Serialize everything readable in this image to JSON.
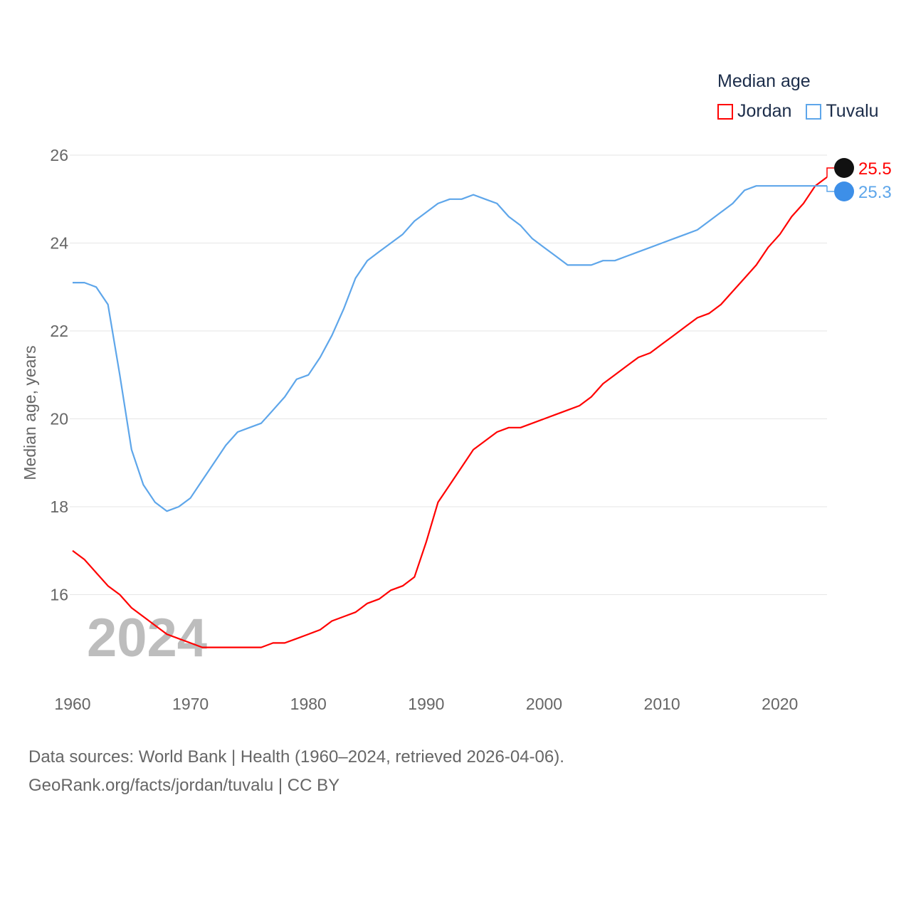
{
  "chart_data": {
    "type": "line",
    "title": "Median age",
    "ylabel": "Median age, years",
    "xlabel": "",
    "xlim": [
      1960,
      2024
    ],
    "ylim": [
      14.2,
      26.5
    ],
    "xticks": [
      1960,
      1970,
      1980,
      1990,
      2000,
      2010,
      2020
    ],
    "yticks": [
      16,
      18,
      20,
      22,
      24,
      26
    ],
    "grid": true,
    "legend_position": "top-right",
    "watermark_year": "2024",
    "x": [
      1960,
      1961,
      1962,
      1963,
      1964,
      1965,
      1966,
      1967,
      1968,
      1969,
      1970,
      1971,
      1972,
      1973,
      1974,
      1975,
      1976,
      1977,
      1978,
      1979,
      1980,
      1981,
      1982,
      1983,
      1984,
      1985,
      1986,
      1987,
      1988,
      1989,
      1990,
      1991,
      1992,
      1993,
      1994,
      1995,
      1996,
      1997,
      1998,
      1999,
      2000,
      2001,
      2002,
      2003,
      2004,
      2005,
      2006,
      2007,
      2008,
      2009,
      2010,
      2011,
      2012,
      2013,
      2014,
      2015,
      2016,
      2017,
      2018,
      2019,
      2020,
      2021,
      2022,
      2023,
      2024
    ],
    "series": [
      {
        "name": "Jordan",
        "color": "#ff0000",
        "end_label": "25.5",
        "values": [
          17.0,
          16.8,
          16.5,
          16.2,
          16.0,
          15.7,
          15.5,
          15.3,
          15.1,
          15.0,
          14.9,
          14.8,
          14.8,
          14.8,
          14.8,
          14.8,
          14.8,
          14.9,
          14.9,
          15.0,
          15.1,
          15.2,
          15.4,
          15.5,
          15.6,
          15.8,
          15.9,
          16.1,
          16.2,
          16.4,
          17.2,
          18.1,
          18.5,
          18.9,
          19.3,
          19.5,
          19.7,
          19.8,
          19.8,
          19.9,
          20.0,
          20.1,
          20.2,
          20.3,
          20.5,
          20.8,
          21.0,
          21.2,
          21.4,
          21.5,
          21.7,
          21.9,
          22.1,
          22.3,
          22.4,
          22.6,
          22.9,
          23.2,
          23.5,
          23.9,
          24.2,
          24.6,
          24.9,
          25.3,
          25.5
        ]
      },
      {
        "name": "Tuvalu",
        "color": "#5ea6ea",
        "end_label": "25.3",
        "values": [
          23.1,
          23.1,
          23.0,
          22.6,
          21.0,
          19.3,
          18.5,
          18.1,
          17.9,
          18.0,
          18.2,
          18.6,
          19.0,
          19.4,
          19.7,
          19.8,
          19.9,
          20.2,
          20.5,
          20.9,
          21.0,
          21.4,
          21.9,
          22.5,
          23.2,
          23.6,
          23.8,
          24.0,
          24.2,
          24.5,
          24.7,
          24.9,
          25.0,
          25.0,
          25.1,
          25.0,
          24.9,
          24.6,
          24.4,
          24.1,
          23.9,
          23.7,
          23.5,
          23.5,
          23.5,
          23.6,
          23.6,
          23.7,
          23.8,
          23.9,
          24.0,
          24.1,
          24.2,
          24.3,
          24.5,
          24.7,
          24.9,
          25.2,
          25.3,
          25.3,
          25.3,
          25.3,
          25.3,
          25.3,
          25.3
        ]
      }
    ]
  },
  "footer": {
    "line1": "Data sources: World Bank | Health (1960–2024, retrieved 2026-04-06).",
    "line2": "GeoRank.org/facts/jordan/tuvalu | CC BY"
  }
}
